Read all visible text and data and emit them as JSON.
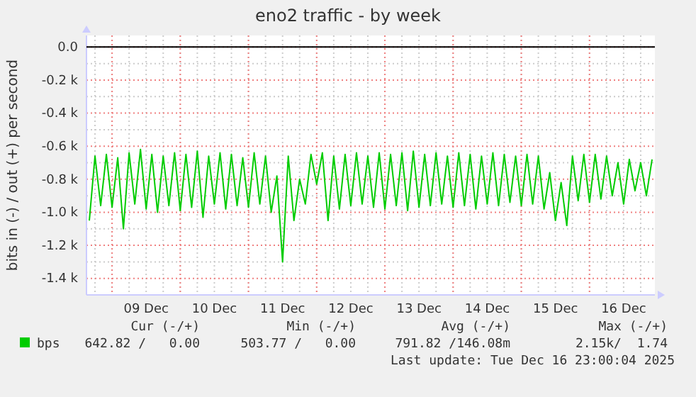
{
  "chart_data": {
    "type": "line",
    "title": "eno2 traffic - by week",
    "ylabel": "bits in (-) / out (+) per second",
    "x": [
      "2025-12-08T16:00",
      "2025-12-08T18:00",
      "2025-12-08T20:00",
      "2025-12-08T22:00",
      "2025-12-09T00:00",
      "2025-12-09T02:00",
      "2025-12-09T04:00",
      "2025-12-09T06:00",
      "2025-12-09T08:00",
      "2025-12-09T10:00",
      "2025-12-09T12:00",
      "2025-12-09T14:00",
      "2025-12-09T16:00",
      "2025-12-09T18:00",
      "2025-12-09T20:00",
      "2025-12-09T22:00",
      "2025-12-10T00:00",
      "2025-12-10T02:00",
      "2025-12-10T04:00",
      "2025-12-10T06:00",
      "2025-12-10T08:00",
      "2025-12-10T10:00",
      "2025-12-10T12:00",
      "2025-12-10T14:00",
      "2025-12-10T16:00",
      "2025-12-10T18:00",
      "2025-12-10T20:00",
      "2025-12-10T22:00",
      "2025-12-11T00:00",
      "2025-12-11T02:00",
      "2025-12-11T04:00",
      "2025-12-11T06:00",
      "2025-12-11T08:00",
      "2025-12-11T10:00",
      "2025-12-11T12:00",
      "2025-12-11T14:00",
      "2025-12-11T16:00",
      "2025-12-11T18:00",
      "2025-12-11T20:00",
      "2025-12-11T22:00",
      "2025-12-12T00:00",
      "2025-12-12T02:00",
      "2025-12-12T04:00",
      "2025-12-12T06:00",
      "2025-12-12T08:00",
      "2025-12-12T10:00",
      "2025-12-12T12:00",
      "2025-12-12T14:00",
      "2025-12-12T16:00",
      "2025-12-12T18:00",
      "2025-12-12T20:00",
      "2025-12-12T22:00",
      "2025-12-13T00:00",
      "2025-12-13T02:00",
      "2025-12-13T04:00",
      "2025-12-13T06:00",
      "2025-12-13T08:00",
      "2025-12-13T10:00",
      "2025-12-13T12:00",
      "2025-12-13T14:00",
      "2025-12-13T16:00",
      "2025-12-13T18:00",
      "2025-12-13T20:00",
      "2025-12-13T22:00",
      "2025-12-14T00:00",
      "2025-12-14T02:00",
      "2025-12-14T04:00",
      "2025-12-14T06:00",
      "2025-12-14T08:00",
      "2025-12-14T10:00",
      "2025-12-14T12:00",
      "2025-12-14T14:00",
      "2025-12-14T16:00",
      "2025-12-14T18:00",
      "2025-12-14T20:00",
      "2025-12-14T22:00",
      "2025-12-15T00:00",
      "2025-12-15T02:00",
      "2025-12-15T04:00",
      "2025-12-15T06:00",
      "2025-12-15T08:00",
      "2025-12-15T10:00",
      "2025-12-15T12:00",
      "2025-12-15T14:00",
      "2025-12-15T16:00",
      "2025-12-15T18:00",
      "2025-12-15T20:00",
      "2025-12-15T22:00",
      "2025-12-16T00:00",
      "2025-12-16T02:00",
      "2025-12-16T04:00",
      "2025-12-16T06:00",
      "2025-12-16T08:00",
      "2025-12-16T10:00",
      "2025-12-16T12:00",
      "2025-12-16T14:00",
      "2025-12-16T16:00",
      "2025-12-16T18:00",
      "2025-12-16T20:00",
      "2025-12-16T22:00"
    ],
    "series": [
      {
        "name": "bps",
        "color": "#00cc00",
        "values": [
          -1050,
          -660,
          -960,
          -650,
          -970,
          -670,
          -1100,
          -640,
          -950,
          -620,
          -980,
          -650,
          -1000,
          -660,
          -960,
          -640,
          -990,
          -650,
          -970,
          -630,
          -1030,
          -660,
          -950,
          -640,
          -980,
          -650,
          -960,
          -670,
          -970,
          -640,
          -950,
          -660,
          -1000,
          -780,
          -1300,
          -660,
          -1050,
          -800,
          -950,
          -650,
          -830,
          -640,
          -1050,
          -660,
          -980,
          -650,
          -960,
          -640,
          -950,
          -660,
          -970,
          -640,
          -980,
          -650,
          -960,
          -640,
          -990,
          -630,
          -970,
          -650,
          -960,
          -640,
          -950,
          -660,
          -970,
          -640,
          -960,
          -650,
          -980,
          -660,
          -950,
          -640,
          -960,
          -650,
          -940,
          -660,
          -960,
          -650,
          -950,
          -660,
          -980,
          -760,
          -1050,
          -820,
          -1080,
          -660,
          -930,
          -650,
          -940,
          -650,
          -920,
          -660,
          -900,
          -700,
          -950,
          -680,
          -870,
          -700,
          -900,
          -680
        ]
      }
    ],
    "xlim": [
      "2025-12-08T15:00",
      "2025-12-16T23:00"
    ],
    "xticks": [
      {
        "value": "2025-12-09T00:00",
        "label": null
      },
      {
        "value": "2025-12-09T12:00",
        "label": "09 Dec"
      },
      {
        "value": "2025-12-10T00:00",
        "label": null
      },
      {
        "value": "2025-12-10T12:00",
        "label": "10 Dec"
      },
      {
        "value": "2025-12-11T00:00",
        "label": null
      },
      {
        "value": "2025-12-11T12:00",
        "label": "11 Dec"
      },
      {
        "value": "2025-12-12T00:00",
        "label": null
      },
      {
        "value": "2025-12-12T12:00",
        "label": "12 Dec"
      },
      {
        "value": "2025-12-13T00:00",
        "label": null
      },
      {
        "value": "2025-12-13T12:00",
        "label": "13 Dec"
      },
      {
        "value": "2025-12-14T00:00",
        "label": null
      },
      {
        "value": "2025-12-14T12:00",
        "label": "14 Dec"
      },
      {
        "value": "2025-12-15T00:00",
        "label": null
      },
      {
        "value": "2025-12-15T12:00",
        "label": "15 Dec"
      },
      {
        "value": "2025-12-16T00:00",
        "label": null
      },
      {
        "value": "2025-12-16T12:00",
        "label": "16 Dec"
      }
    ],
    "ylim": [
      -1500,
      70
    ],
    "yticks": [
      {
        "value": 0,
        "label": "0.0"
      },
      {
        "value": -200,
        "label": "-0.2 k"
      },
      {
        "value": -400,
        "label": "-0.4 k"
      },
      {
        "value": -600,
        "label": "-0.6 k"
      },
      {
        "value": -800,
        "label": "-0.8 k"
      },
      {
        "value": -1000,
        "label": "-1.0 k"
      },
      {
        "value": -1200,
        "label": "-1.2 k"
      },
      {
        "value": -1400,
        "label": "-1.4 k"
      }
    ],
    "ref_lines": [
      {
        "axis": "y",
        "value": 0,
        "color": "#000000"
      }
    ],
    "grid": true,
    "legend": "bottom",
    "line_style": "solid",
    "annotations": [
      "Cur (-/+)",
      "Min (-/+)",
      "Avg (-/+)",
      "Max (-/+)",
      "642.82 /   0.00",
      "503.77 /   0.00",
      "791.82 /146.08m",
      "2.15k/  1.74",
      "Last update: Tue Dec 16 23:00:04 2025"
    ]
  }
}
